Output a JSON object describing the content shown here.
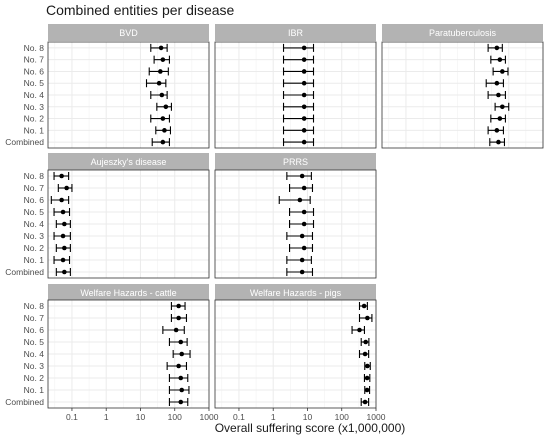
{
  "chart_data": {
    "type": "scatter",
    "title": "Combined entities per disease",
    "xlabel": "Overall suffering score (x1,000,000)",
    "ylabel": "",
    "x_scale": "log",
    "xlim": [
      0.02,
      1000
    ],
    "x_ticks": [
      0.1,
      1,
      10,
      100,
      1000
    ],
    "x_tick_labels": [
      "0.1",
      "1",
      "10",
      "100",
      "1000"
    ],
    "grid": true,
    "categories": [
      "No. 8",
      "No. 7",
      "No. 6",
      "No. 5",
      "No. 4",
      "No. 3",
      "No. 2",
      "No. 1",
      "Combined"
    ],
    "panels": [
      {
        "name": "BVD",
        "points": [
          {
            "y": 40,
            "lo": 20,
            "hi": 60
          },
          {
            "y": 45,
            "lo": 25,
            "hi": 70
          },
          {
            "y": 38,
            "lo": 18,
            "hi": 65
          },
          {
            "y": 35,
            "lo": 15,
            "hi": 55
          },
          {
            "y": 42,
            "lo": 20,
            "hi": 60
          },
          {
            "y": 55,
            "lo": 30,
            "hi": 80
          },
          {
            "y": 45,
            "lo": 20,
            "hi": 70
          },
          {
            "y": 50,
            "lo": 28,
            "hi": 75
          },
          {
            "y": 45,
            "lo": 22,
            "hi": 70
          }
        ]
      },
      {
        "name": "IBR",
        "points": [
          {
            "y": 8,
            "lo": 2,
            "hi": 15
          },
          {
            "y": 8,
            "lo": 2,
            "hi": 15
          },
          {
            "y": 8,
            "lo": 2,
            "hi": 15
          },
          {
            "y": 8,
            "lo": 2,
            "hi": 15
          },
          {
            "y": 8,
            "lo": 2,
            "hi": 15
          },
          {
            "y": 8,
            "lo": 2,
            "hi": 15
          },
          {
            "y": 8,
            "lo": 2,
            "hi": 15
          },
          {
            "y": 8,
            "lo": 2,
            "hi": 15
          },
          {
            "y": 8,
            "lo": 2,
            "hi": 15
          }
        ]
      },
      {
        "name": "Paratuberculosis",
        "points": [
          {
            "y": 45,
            "lo": 25,
            "hi": 65
          },
          {
            "y": 55,
            "lo": 30,
            "hi": 80
          },
          {
            "y": 65,
            "lo": 35,
            "hi": 95
          },
          {
            "y": 45,
            "lo": 22,
            "hi": 70
          },
          {
            "y": 50,
            "lo": 25,
            "hi": 80
          },
          {
            "y": 65,
            "lo": 40,
            "hi": 100
          },
          {
            "y": 55,
            "lo": 30,
            "hi": 80
          },
          {
            "y": 45,
            "lo": 25,
            "hi": 70
          },
          {
            "y": 50,
            "lo": 28,
            "hi": 75
          }
        ]
      },
      {
        "name": "Aujeszky's disease",
        "points": [
          {
            "y": 0.05,
            "lo": 0.03,
            "hi": 0.08
          },
          {
            "y": 0.07,
            "lo": 0.04,
            "hi": 0.1
          },
          {
            "y": 0.05,
            "lo": 0.025,
            "hi": 0.08
          },
          {
            "y": 0.055,
            "lo": 0.03,
            "hi": 0.085
          },
          {
            "y": 0.06,
            "lo": 0.035,
            "hi": 0.09
          },
          {
            "y": 0.055,
            "lo": 0.03,
            "hi": 0.09
          },
          {
            "y": 0.06,
            "lo": 0.035,
            "hi": 0.09
          },
          {
            "y": 0.055,
            "lo": 0.03,
            "hi": 0.085
          },
          {
            "y": 0.06,
            "lo": 0.035,
            "hi": 0.09
          }
        ]
      },
      {
        "name": "PRRS",
        "points": [
          {
            "y": 7,
            "lo": 2.5,
            "hi": 13
          },
          {
            "y": 8,
            "lo": 3,
            "hi": 14
          },
          {
            "y": 6,
            "lo": 1.5,
            "hi": 12
          },
          {
            "y": 8,
            "lo": 3,
            "hi": 15
          },
          {
            "y": 8,
            "lo": 3,
            "hi": 15
          },
          {
            "y": 7,
            "lo": 2.5,
            "hi": 14
          },
          {
            "y": 8,
            "lo": 3,
            "hi": 14
          },
          {
            "y": 7,
            "lo": 2.5,
            "hi": 13
          },
          {
            "y": 7,
            "lo": 2.5,
            "hi": 14
          }
        ]
      },
      {
        "name": "Welfare Hazards - cattle",
        "points": [
          {
            "y": 130,
            "lo": 80,
            "hi": 200
          },
          {
            "y": 130,
            "lo": 80,
            "hi": 220
          },
          {
            "y": 110,
            "lo": 45,
            "hi": 190
          },
          {
            "y": 150,
            "lo": 70,
            "hi": 230
          },
          {
            "y": 160,
            "lo": 90,
            "hi": 280
          },
          {
            "y": 130,
            "lo": 60,
            "hi": 220
          },
          {
            "y": 150,
            "lo": 70,
            "hi": 240
          },
          {
            "y": 160,
            "lo": 70,
            "hi": 260
          },
          {
            "y": 150,
            "lo": 70,
            "hi": 240
          }
        ]
      },
      {
        "name": "Welfare Hazards - pigs",
        "points": [
          {
            "y": 450,
            "lo": 330,
            "hi": 560
          },
          {
            "y": 560,
            "lo": 330,
            "hi": 760
          },
          {
            "y": 330,
            "lo": 200,
            "hi": 460
          },
          {
            "y": 500,
            "lo": 370,
            "hi": 620
          },
          {
            "y": 480,
            "lo": 330,
            "hi": 610
          },
          {
            "y": 560,
            "lo": 470,
            "hi": 680
          },
          {
            "y": 550,
            "lo": 460,
            "hi": 660
          },
          {
            "y": 550,
            "lo": 470,
            "hi": 650
          },
          {
            "y": 480,
            "lo": 370,
            "hi": 610
          }
        ]
      }
    ]
  },
  "colors": {
    "strip": "#b3b3b3",
    "strip_text": "#ffffff",
    "grid": "#ebebeb",
    "panel_border": "#333333",
    "mark": "#000000"
  }
}
